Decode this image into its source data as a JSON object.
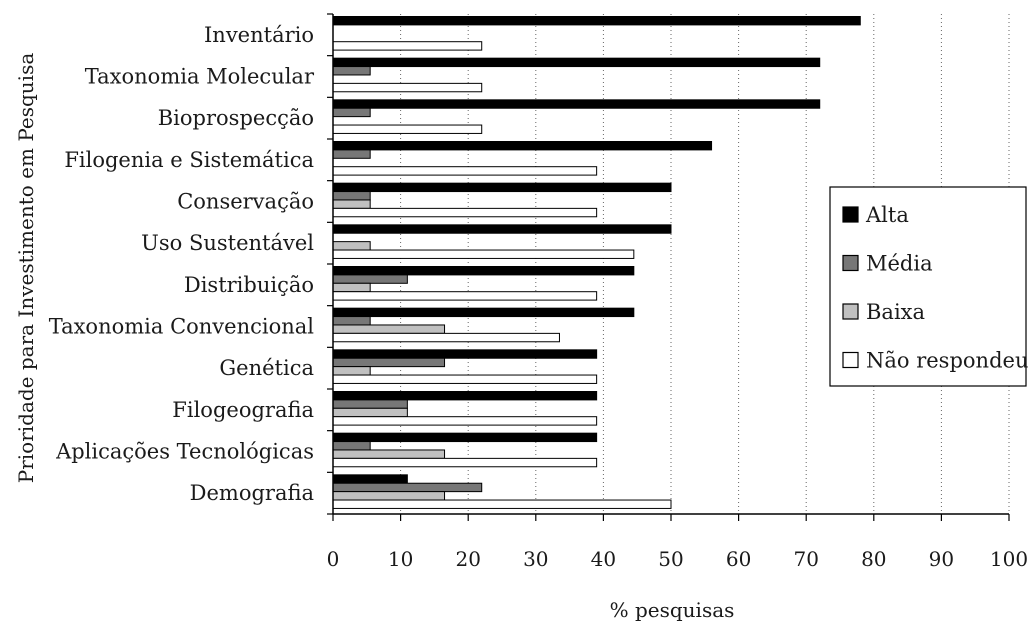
{
  "chart_data": {
    "type": "bar",
    "orientation": "horizontal",
    "title": "",
    "xlabel": "% pesquisas",
    "ylabel": "Prioridade para Investimento em Pesquisa",
    "xlim": [
      0,
      100
    ],
    "xticks": [
      "0",
      "10",
      "20",
      "30",
      "40",
      "50",
      "60",
      "70",
      "80",
      "90",
      "100"
    ],
    "grid": "vertical dotted",
    "legend_position": "right",
    "categories": [
      "Inventário",
      "Taxonomia Molecular",
      "Bioprospecção",
      "Filogenia e Sistemática",
      "Conservação",
      "Uso Sustentável",
      "Distribuição",
      "Taxonomia Convencional",
      "Genética",
      "Filogeografia",
      "Aplicações Tecnológicas",
      "Demografia"
    ],
    "series": [
      {
        "name": "Alta",
        "color": "#000000",
        "values": [
          78,
          72,
          72,
          56,
          50,
          50,
          44.5,
          44.5,
          39,
          39,
          39,
          11
        ]
      },
      {
        "name": "Média",
        "color": "#777777",
        "values": [
          0,
          5.5,
          5.5,
          5.5,
          5.5,
          0,
          11,
          5.5,
          16.5,
          11,
          5.5,
          22
        ]
      },
      {
        "name": "Baixa",
        "color": "#c0c0c0",
        "values": [
          0,
          0,
          0,
          0,
          5.5,
          5.5,
          5.5,
          16.5,
          5.5,
          11,
          16.5,
          16.5
        ]
      },
      {
        "name": "Não respondeu",
        "color": "#ffffff",
        "values": [
          22,
          22,
          22,
          39,
          39,
          44.5,
          39,
          33.5,
          39,
          39,
          39,
          50
        ]
      }
    ]
  }
}
